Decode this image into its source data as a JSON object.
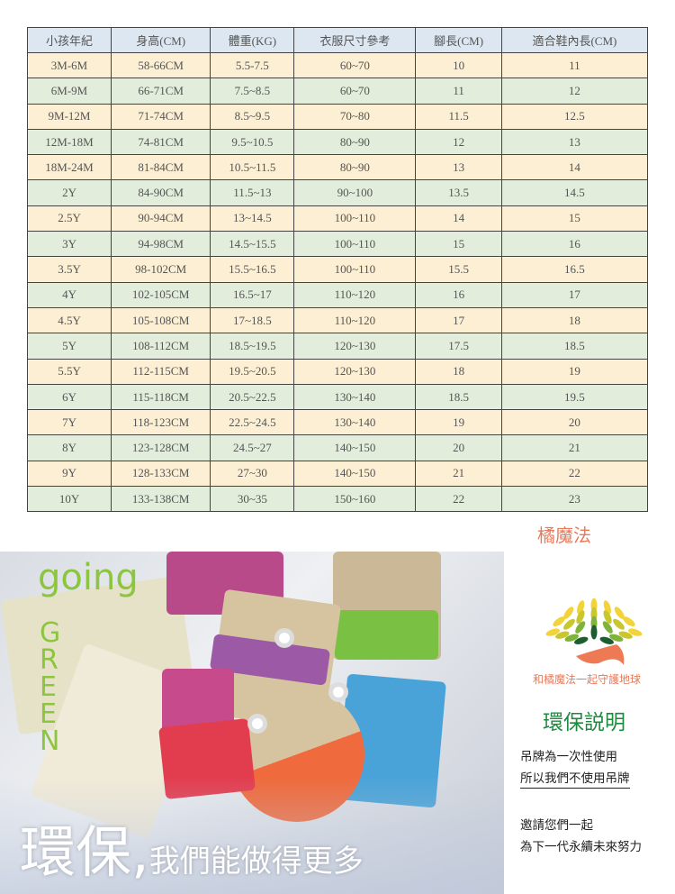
{
  "table": {
    "headers": [
      "小孩年紀",
      "身高(CM)",
      "體重(KG)",
      "衣服尺寸參考",
      "腳長(CM)",
      "適合鞋內長(CM)"
    ],
    "rows": [
      [
        "3M-6M",
        "58-66CM",
        "5.5-7.5",
        "60~70",
        "10",
        "11"
      ],
      [
        "6M-9M",
        "66-71CM",
        "7.5~8.5",
        "60~70",
        "11",
        "12"
      ],
      [
        "9M-12M",
        "71-74CM",
        "8.5~9.5",
        "70~80",
        "11.5",
        "12.5"
      ],
      [
        "12M-18M",
        "74-81CM",
        "9.5~10.5",
        "80~90",
        "12",
        "13"
      ],
      [
        "18M-24M",
        "81-84CM",
        "10.5~11.5",
        "80~90",
        "13",
        "14"
      ],
      [
        "2Y",
        "84-90CM",
        "11.5~13",
        "90~100",
        "13.5",
        "14.5"
      ],
      [
        "2.5Y",
        "90-94CM",
        "13~14.5",
        "100~110",
        "14",
        "15"
      ],
      [
        "3Y",
        "94-98CM",
        "14.5~15.5",
        "100~110",
        "15",
        "16"
      ],
      [
        "3.5Y",
        "98-102CM",
        "15.5~16.5",
        "100~110",
        "15.5",
        "16.5"
      ],
      [
        "4Y",
        "102-105CM",
        "16.5~17",
        "110~120",
        "16",
        "17"
      ],
      [
        "4.5Y",
        "105-108CM",
        "17~18.5",
        "110~120",
        "17",
        "18"
      ],
      [
        "5Y",
        "108-112CM",
        "18.5~19.5",
        "120~130",
        "17.5",
        "18.5"
      ],
      [
        "5.5Y",
        "112-115CM",
        "19.5~20.5",
        "120~130",
        "18",
        "19"
      ],
      [
        "6Y",
        "115-118CM",
        "20.5~22.5",
        "130~140",
        "18.5",
        "19.5"
      ],
      [
        "7Y",
        "118-123CM",
        "22.5~24.5",
        "130~140",
        "19",
        "20"
      ],
      [
        "8Y",
        "123-128CM",
        "24.5~27",
        "140~150",
        "20",
        "21"
      ],
      [
        "9Y",
        "128-133CM",
        "27~30",
        "140~150",
        "21",
        "22"
      ],
      [
        "10Y",
        "133-138CM",
        "30~35",
        "150~160",
        "22",
        "23"
      ]
    ]
  },
  "brand": "橘魔法",
  "photo": {
    "going": "going",
    "green": "GREEN",
    "slogan_big": "環保,",
    "slogan_small": "我們能做得更多"
  },
  "side": {
    "motto": "和橘魔法一起守護地球",
    "title": "環保説明",
    "lines": [
      "吊牌為一次性使用",
      "所以我們不使用吊牌",
      "邀請您們一起",
      "為下一代永續未來努力"
    ]
  },
  "colors": {
    "header": "#dce7f1",
    "row_yellow": "#fcefd3",
    "row_green": "#e2eddb",
    "brand": "#e8795a",
    "title": "#1f8a3e",
    "going": "#8cc63f"
  }
}
